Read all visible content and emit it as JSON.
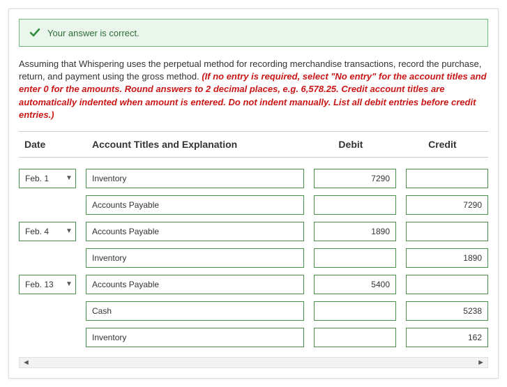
{
  "alert": {
    "text": "Your answer is correct."
  },
  "instructions": {
    "main": "Assuming that Whispering uses the perpetual method for recording merchandise transactions, record the purchase, return, and payment using the gross method. ",
    "note": "(If no entry is required, select \"No entry\" for the account titles and enter 0 for the amounts. Round answers to 2 decimal places, e.g. 6,578.25. Credit account titles are automatically indented when amount is entered. Do not indent manually. List all debit entries before credit entries.)"
  },
  "headers": {
    "date": "Date",
    "title": "Account Titles and Explanation",
    "debit": "Debit",
    "credit": "Credit"
  },
  "rows": [
    {
      "date": "Feb. 1",
      "title": "Inventory",
      "debit": "7290",
      "credit": ""
    },
    {
      "date": "",
      "title": "Accounts Payable",
      "debit": "",
      "credit": "7290"
    },
    {
      "date": "Feb. 4",
      "title": "Accounts Payable",
      "debit": "1890",
      "credit": ""
    },
    {
      "date": "",
      "title": "Inventory",
      "debit": "",
      "credit": "1890"
    },
    {
      "date": "Feb. 13",
      "title": "Accounts Payable",
      "debit": "5400",
      "credit": ""
    },
    {
      "date": "",
      "title": "Cash",
      "debit": "",
      "credit": "5238"
    },
    {
      "date": "",
      "title": "Inventory",
      "debit": "",
      "credit": "162"
    }
  ]
}
